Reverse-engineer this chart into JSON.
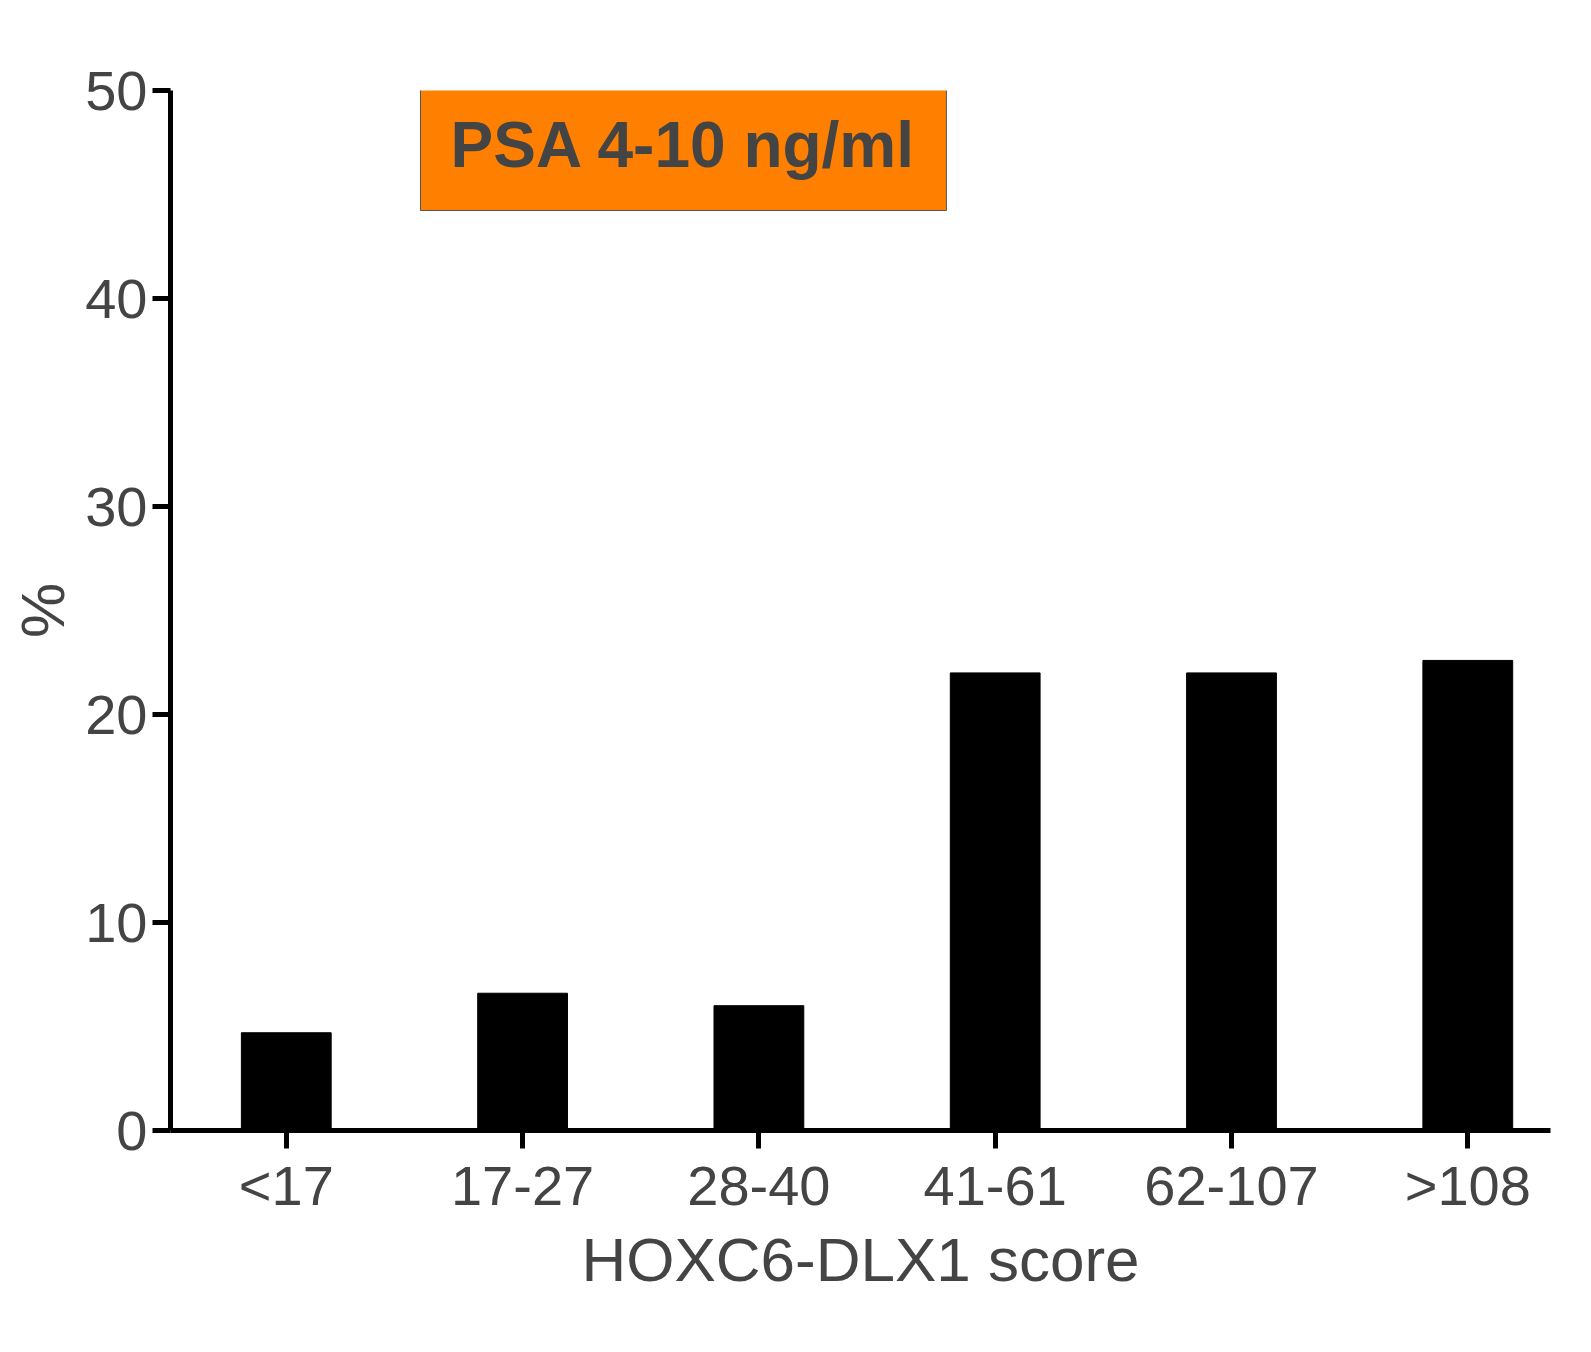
{
  "chart_data": {
    "type": "bar",
    "xlabel": "HOXC6-DLX1 score",
    "ylabel": "%",
    "categories": [
      "<17",
      "17-27",
      "28-40",
      "41-61",
      "62-107",
      ">108"
    ],
    "values": [
      4.7,
      6.6,
      6.0,
      22.0,
      22.0,
      22.6
    ],
    "color": "#000000",
    "ylim": [
      0,
      50
    ],
    "yticks": [
      0,
      10,
      20,
      30,
      40,
      50
    ],
    "grid": false,
    "annotations": [
      "PSA 4-10 ng/ml"
    ]
  }
}
